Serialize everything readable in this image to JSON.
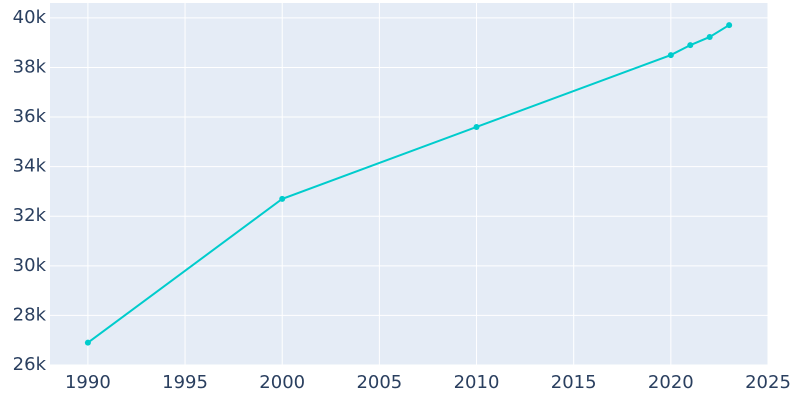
{
  "chart_data": {
    "type": "line",
    "x": [
      1990,
      2000,
      2010,
      2020,
      2021,
      2022,
      2023
    ],
    "series": [
      {
        "color": "#00cccc",
        "values": [
          26900,
          32700,
          35600,
          38500,
          38900,
          39230,
          39710
        ]
      }
    ],
    "xlim": [
      1988.05,
      2025
    ],
    "xticks": [
      1990,
      1995,
      2000,
      2005,
      2010,
      2015,
      2020,
      2025
    ],
    "ylim": [
      26000,
      40600
    ],
    "yticks": [
      {
        "value": 26000,
        "label": "26k"
      },
      {
        "value": 28000,
        "label": "28k"
      },
      {
        "value": 30000,
        "label": "30k"
      },
      {
        "value": 32000,
        "label": "32k"
      },
      {
        "value": 34000,
        "label": "34k"
      },
      {
        "value": 36000,
        "label": "36k"
      },
      {
        "value": 38000,
        "label": "38k"
      },
      {
        "value": 40000,
        "label": "40k"
      }
    ],
    "grid": true
  }
}
